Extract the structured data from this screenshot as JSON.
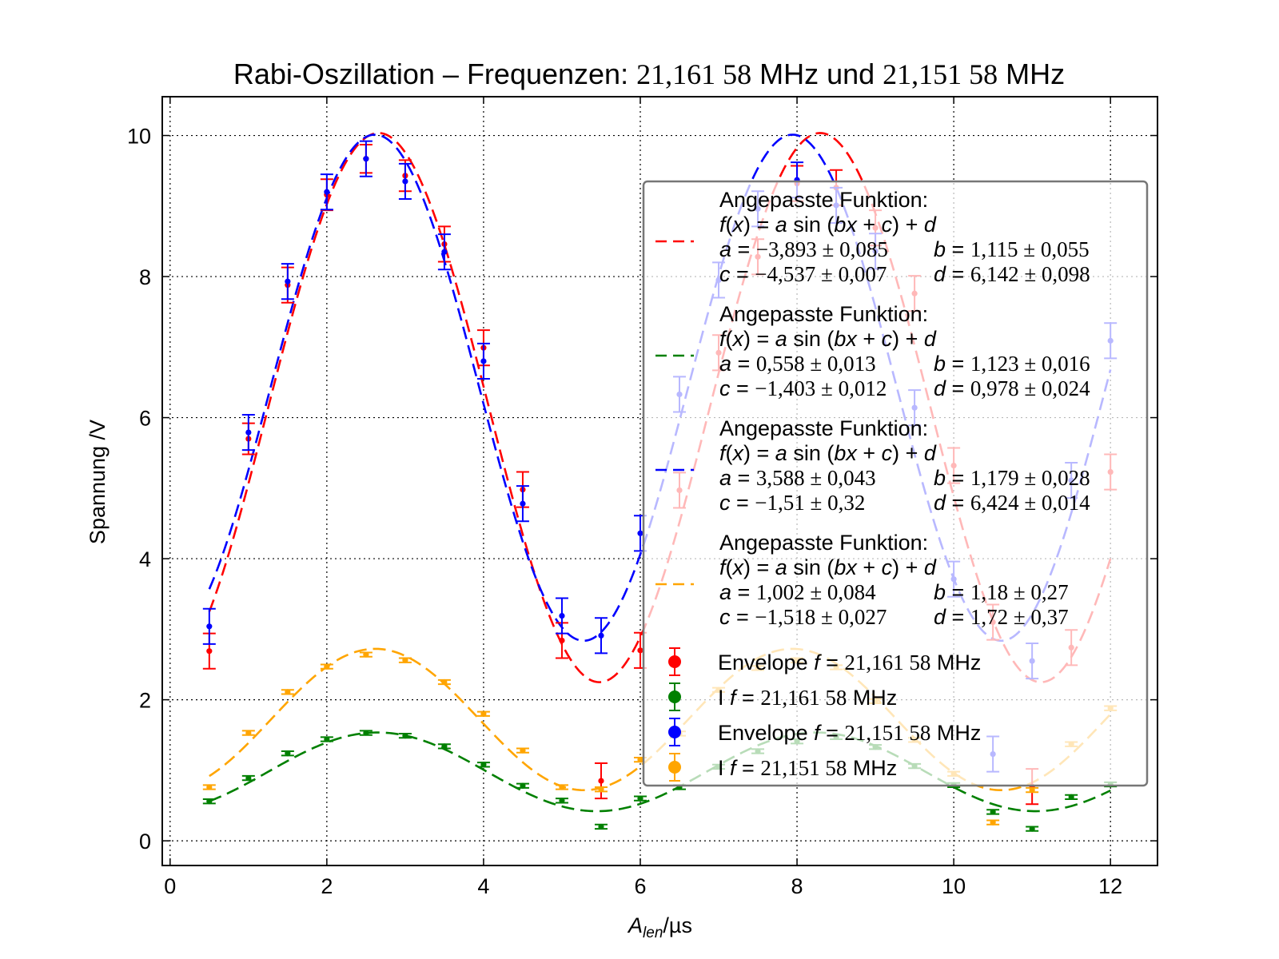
{
  "chart_data": {
    "type": "scatter",
    "title_parts": {
      "prefix": "Rabi-Oszillation – Frequenzen: ",
      "freq1": "21,161 58",
      "unit1": " MHz",
      "mid": " und ",
      "freq2": "21,151 58",
      "unit2": " MHz"
    },
    "xlabel_main": "A",
    "xlabel_sub": "len",
    "xlabel_unit": "/µs",
    "ylabel": "Spannung /V",
    "xlim": [
      -0.1,
      12.6
    ],
    "ylim": [
      -0.35,
      10.55
    ],
    "xticks": [
      0,
      2,
      4,
      6,
      8,
      10,
      12
    ],
    "yticks": [
      0,
      2,
      4,
      6,
      8,
      10
    ],
    "grid": true,
    "legend_position": "right",
    "x": [
      0.5,
      1.0,
      1.5,
      2.0,
      2.5,
      3.0,
      3.5,
      4.0,
      4.5,
      5.0,
      5.5,
      6.0,
      6.5,
      7.0,
      7.5,
      8.0,
      8.5,
      9.0,
      9.5,
      10.0,
      10.5,
      11.0,
      11.5,
      12.0
    ],
    "series": [
      {
        "name": "Envelope f = 21,161 58 MHz",
        "legend_prefix": "Envelope ",
        "legend_freq": "21,161 58",
        "color": "#ff0000",
        "values": [
          2.69,
          5.7,
          7.88,
          9.16,
          9.67,
          9.43,
          8.46,
          6.99,
          4.98,
          2.84,
          0.85,
          2.7,
          4.97,
          6.92,
          8.28,
          9.32,
          9.26,
          8.69,
          7.76,
          5.32,
          3.1,
          0.77,
          2.74,
          5.23
        ],
        "errors": [
          0.25,
          0.22,
          0.25,
          0.22,
          0.2,
          0.22,
          0.25,
          0.25,
          0.25,
          0.25,
          0.25,
          0.25,
          0.25,
          0.25,
          0.25,
          0.25,
          0.25,
          0.25,
          0.25,
          0.25,
          0.25,
          0.25,
          0.25,
          0.25
        ],
        "fit": {
          "a": -3.893,
          "b": 1.115,
          "c": -4.537,
          "d": 6.142
        }
      },
      {
        "name": "I f = 21,161 58 MHz",
        "legend_prefix": "I ",
        "legend_freq": "21,161 58",
        "color": "#008000",
        "values": [
          0.56,
          0.89,
          1.24,
          1.44,
          1.53,
          1.49,
          1.34,
          1.08,
          0.78,
          0.57,
          0.2,
          0.6,
          0.76,
          1.05,
          1.27,
          1.41,
          1.47,
          1.33,
          1.06,
          0.79,
          0.41,
          0.17,
          0.62,
          0.8
        ],
        "errors": [
          0.03,
          0.03,
          0.03,
          0.03,
          0.03,
          0.03,
          0.03,
          0.03,
          0.03,
          0.03,
          0.03,
          0.03,
          0.03,
          0.03,
          0.03,
          0.03,
          0.03,
          0.03,
          0.03,
          0.03,
          0.03,
          0.03,
          0.03,
          0.03
        ],
        "fit": {
          "a": 0.558,
          "b": 1.123,
          "c": -1.403,
          "d": 0.978
        }
      },
      {
        "name": "Envelope f = 21,151 58 MHz",
        "legend_prefix": "Envelope ",
        "legend_freq": "21,151 58",
        "color": "#0000ff",
        "values": [
          3.04,
          5.79,
          7.93,
          9.2,
          9.67,
          9.35,
          8.35,
          6.8,
          4.78,
          3.19,
          2.91,
          4.36,
          6.33,
          7.95,
          8.96,
          9.37,
          9.01,
          8.36,
          6.14,
          3.71,
          1.23,
          2.55,
          5.11,
          7.09
        ],
        "errors": [
          0.25,
          0.25,
          0.25,
          0.25,
          0.25,
          0.25,
          0.25,
          0.25,
          0.25,
          0.25,
          0.25,
          0.25,
          0.25,
          0.25,
          0.25,
          0.25,
          0.25,
          0.25,
          0.25,
          0.25,
          0.25,
          0.25,
          0.25,
          0.25
        ],
        "fit": {
          "a": 3.588,
          "b": 1.179,
          "c": -1.51,
          "d": 6.424
        }
      },
      {
        "name": "I f = 21,151 58 MHz",
        "legend_prefix": "I ",
        "legend_freq": "21,151 58",
        "color": "#ffa500",
        "values": [
          0.76,
          1.53,
          2.11,
          2.47,
          2.64,
          2.56,
          2.25,
          1.8,
          1.28,
          0.76,
          0.73,
          1.15,
          1.52,
          2.14,
          2.45,
          2.56,
          2.46,
          1.98,
          1.43,
          0.95,
          0.26,
          0.72,
          1.37,
          1.88
        ],
        "errors": [
          0.03,
          0.03,
          0.03,
          0.03,
          0.03,
          0.03,
          0.03,
          0.03,
          0.03,
          0.03,
          0.03,
          0.03,
          0.03,
          0.03,
          0.03,
          0.03,
          0.03,
          0.03,
          0.03,
          0.03,
          0.03,
          0.03,
          0.03,
          0.03
        ],
        "fit": {
          "a": 1.002,
          "b": 1.18,
          "c": -1.518,
          "d": 1.72
        }
      }
    ],
    "fit_legend": [
      {
        "color": "#ff0000",
        "heading": "Angepasste Funktion:",
        "a_text": "−3,893 ± 0,085",
        "b_text": "1,115 ± 0,055",
        "c_text": "−4,537 ± 0,007",
        "d_text": "6,142 ± 0,098"
      },
      {
        "color": "#008000",
        "heading": "Angepasste Funktion:",
        "a_text": "0,558 ± 0,013",
        "b_text": "1,123 ± 0,016",
        "c_text": "−1,403 ± 0,012",
        "d_text": "0,978 ± 0,024"
      },
      {
        "color": "#0000ff",
        "heading": "Angepasste Funktion:",
        "a_text": "3,588 ± 0,043",
        "b_text": "1,179 ± 0,028",
        "c_text": "−1,51 ± 0,32",
        "d_text": "6,424 ± 0,014"
      },
      {
        "color": "#ffa500",
        "heading": "Angepasste Funktion:",
        "a_text": "1,002 ± 0,084",
        "b_text": "1,18 ± 0,27",
        "c_text": "−1,518 ± 0,027",
        "d_text": "1,72 ± 0,37"
      }
    ],
    "formula": {
      "f": "f",
      "open": "(",
      "x": "x",
      "close": ")",
      "eq": " = ",
      "a": "a",
      "sin": " sin ",
      "paren_open": "(",
      "b": "b",
      "plus1": " + ",
      "c": "c",
      "paren_close": ")",
      "plus2": " + ",
      "d": "d"
    },
    "legend_f": "f",
    "legend_eq": " = ",
    "legend_unit": " MHz"
  }
}
